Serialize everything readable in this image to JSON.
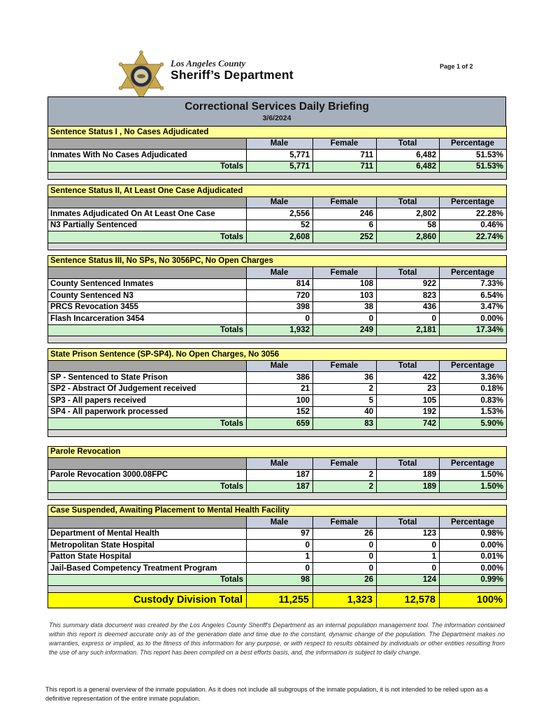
{
  "header": {
    "agency_line1": "Los Angeles County",
    "agency_line2": "Sheriff’s Department",
    "page_indicator": "Page 1 of 2",
    "badge_icon": "sheriff-star-badge"
  },
  "report": {
    "title": "Correctional Services Daily Briefing",
    "date": "3/6/2024",
    "columns": [
      "Male",
      "Female",
      "Total",
      "Percentage"
    ],
    "totals_label": "Totals",
    "sections": [
      {
        "title": "Sentence Status I , No Cases Adjudicated",
        "rows": [
          {
            "label": "Inmates With No Cases Adjudicated",
            "male": "5,771",
            "female": "711",
            "total": "6,482",
            "percentage": "51.53%"
          }
        ],
        "totals": {
          "male": "5,771",
          "female": "711",
          "total": "6,482",
          "percentage": "51.53%"
        }
      },
      {
        "title": "Sentence Status II, At Least One Case Adjudicated",
        "rows": [
          {
            "label": "Inmates Adjudicated On At Least One Case",
            "male": "2,556",
            "female": "246",
            "total": "2,802",
            "percentage": "22.28%"
          },
          {
            "label": "N3 Partially Sentenced",
            "male": "52",
            "female": "6",
            "total": "58",
            "percentage": "0.46%"
          }
        ],
        "totals": {
          "male": "2,608",
          "female": "252",
          "total": "2,860",
          "percentage": "22.74%"
        }
      },
      {
        "title": "Sentence Status III, No SPs, No 3056PC, No Open Charges",
        "rows": [
          {
            "label": "County Sentenced Inmates",
            "male": "814",
            "female": "108",
            "total": "922",
            "percentage": "7.33%"
          },
          {
            "label": "County Sentenced N3",
            "male": "720",
            "female": "103",
            "total": "823",
            "percentage": "6.54%"
          },
          {
            "label": "PRCS Revocation 3455",
            "male": "398",
            "female": "38",
            "total": "436",
            "percentage": "3.47%"
          },
          {
            "label": "Flash Incarceration 3454",
            "male": "0",
            "female": "0",
            "total": "0",
            "percentage": "0.00%"
          }
        ],
        "totals": {
          "male": "1,932",
          "female": "249",
          "total": "2,181",
          "percentage": "17.34%"
        }
      },
      {
        "title": "State Prison Sentence (SP-SP4). No Open Charges, No 3056",
        "rows": [
          {
            "label": "SP - Sentenced to State Prison",
            "male": "386",
            "female": "36",
            "total": "422",
            "percentage": "3.36%"
          },
          {
            "label": "SP2 - Abstract Of Judgement received",
            "male": "21",
            "female": "2",
            "total": "23",
            "percentage": "0.18%"
          },
          {
            "label": "SP3 - All papers received",
            "male": "100",
            "female": "5",
            "total": "105",
            "percentage": "0.83%"
          },
          {
            "label": "SP4 - All paperwork processed",
            "male": "152",
            "female": "40",
            "total": "192",
            "percentage": "1.53%"
          }
        ],
        "totals": {
          "male": "659",
          "female": "83",
          "total": "742",
          "percentage": "5.90%"
        }
      },
      {
        "title": "Parole Revocation",
        "rows": [
          {
            "label": "Parole Revocation 3000.08FPC",
            "male": "187",
            "female": "2",
            "total": "189",
            "percentage": "1.50%"
          }
        ],
        "totals": {
          "male": "187",
          "female": "2",
          "total": "189",
          "percentage": "1.50%"
        }
      },
      {
        "title": "Case Suspended, Awaiting Placement to Mental Health Facility",
        "rows": [
          {
            "label": "Department of Mental Health",
            "male": "97",
            "female": "26",
            "total": "123",
            "percentage": "0.98%"
          },
          {
            "label": "Metropolitan State Hospital",
            "male": "0",
            "female": "0",
            "total": "0",
            "percentage": "0.00%"
          },
          {
            "label": "Patton State Hospital",
            "male": "1",
            "female": "0",
            "total": "1",
            "percentage": "0.01%"
          },
          {
            "label": "Jail-Based Competency Treatment Program",
            "male": "0",
            "female": "0",
            "total": "0",
            "percentage": "0.00%"
          }
        ],
        "totals": {
          "male": "98",
          "female": "26",
          "total": "124",
          "percentage": "0.99%"
        }
      }
    ],
    "grand_total": {
      "label": "Custody Division Total",
      "male": "11,255",
      "female": "1,323",
      "total": "12,578",
      "percentage": "100%"
    }
  },
  "footer": {
    "disclaimer": "This summary data document was created by the Los Angeles County Sheriff's Department as an internal population management tool.  The information contained within this report is deemed accurate only as of the generation date and time due to the constant, dynamic change of the population.  The Department makes no warranties, express or implied, as to the fitness of this information for any purpose, or with respect to results obtained by individuals or other entities resulting from the use of any such information.  This report has been compiled on a best efforts basis, and, the information is subject to daily change.",
    "footnote": "This report is a general overview of the inmate population.  As it does not include all subgroups of the inmate population, it is not intended to be relied upon as a definitive representation of the entire inmate population."
  },
  "colors": {
    "title_bar": "#A6AFBC",
    "section_header": "#FFFF99",
    "column_header": "#C8CEDC",
    "column_header_label": "#A6A6A6",
    "totals_row": "#CCF2CC",
    "filler": "#D9D9D9",
    "grand_total_row": "#FFFF00"
  }
}
